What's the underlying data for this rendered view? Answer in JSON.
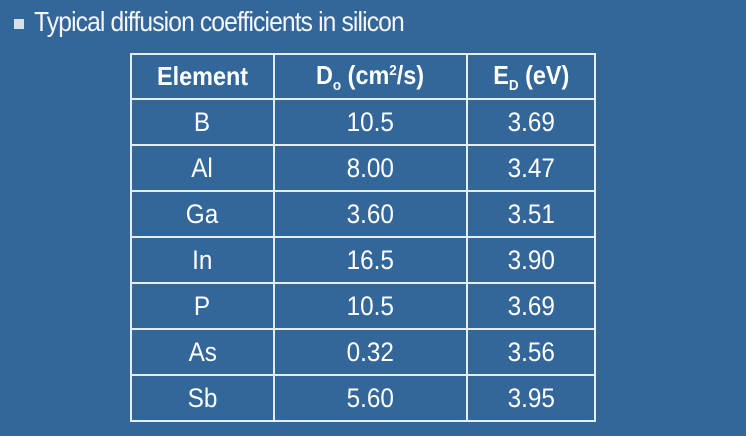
{
  "title": "Typical diffusion coefficients in silicon",
  "table": {
    "headers": [
      {
        "main": "Element"
      },
      {
        "main": "D",
        "sub": "o",
        "rest1": " (cm",
        "sup": "2",
        "rest2": "/s)"
      },
      {
        "main": "E",
        "sub": "D",
        "rest": " (eV)"
      }
    ],
    "rows": [
      [
        "B",
        "10.5",
        "3.69"
      ],
      [
        "Al",
        "8.00",
        "3.47"
      ],
      [
        "Ga",
        "3.60",
        "3.51"
      ],
      [
        "In",
        "16.5",
        "3.90"
      ],
      [
        "P",
        "10.5",
        "3.69"
      ],
      [
        "As",
        "0.32",
        "3.56"
      ],
      [
        "Sb",
        "5.60",
        "3.95"
      ]
    ]
  },
  "colors": {
    "background": "#336699",
    "border": "#e6ecf4",
    "text": "#ffffff"
  }
}
